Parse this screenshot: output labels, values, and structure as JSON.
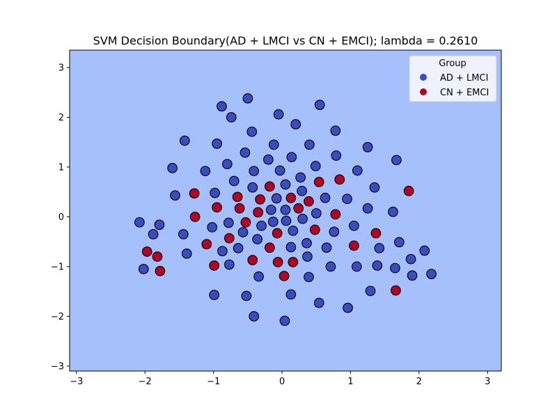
{
  "chart_data": {
    "type": "scatter",
    "title": "SVM Decision Boundary(AD + LMCI vs CN + EMCI); lambda = 0.2610",
    "xlabel": "",
    "ylabel": "",
    "xlim": [
      -3.1,
      3.2
    ],
    "ylim": [
      -3.1,
      3.35
    ],
    "xticks": [
      -3,
      -2,
      -1,
      0,
      1,
      2,
      3
    ],
    "yticks": [
      -3,
      -2,
      -1,
      0,
      1,
      2,
      3
    ],
    "grid": false,
    "background_color": "#a5c0fd",
    "legend": {
      "title": "Group",
      "placement": "top-right"
    },
    "series": [
      {
        "name": "AD + LMCI",
        "color": "#3b4cc0",
        "points": [
          [
            -0.5,
            2.38
          ],
          [
            0.55,
            2.25
          ],
          [
            -0.88,
            2.22
          ],
          [
            -0.05,
            2.06
          ],
          [
            -0.74,
            2.0
          ],
          [
            0.2,
            1.86
          ],
          [
            0.78,
            1.73
          ],
          [
            -0.44,
            1.71
          ],
          [
            -1.42,
            1.53
          ],
          [
            -0.95,
            1.47
          ],
          [
            -0.12,
            1.45
          ],
          [
            0.4,
            1.45
          ],
          [
            1.25,
            1.4
          ],
          [
            -0.54,
            1.29
          ],
          [
            0.79,
            1.23
          ],
          [
            0.14,
            1.2
          ],
          [
            -0.2,
            1.15
          ],
          [
            1.67,
            1.14
          ],
          [
            -0.8,
            1.06
          ],
          [
            0.49,
            1.02
          ],
          [
            -1.6,
            0.98
          ],
          [
            -0.41,
            0.92
          ],
          [
            -0.03,
            0.93
          ],
          [
            1.1,
            0.93
          ],
          [
            -1.12,
            0.92
          ],
          [
            0.27,
            0.79
          ],
          [
            -0.7,
            0.72
          ],
          [
            0.05,
            0.65
          ],
          [
            -0.43,
            0.59
          ],
          [
            1.35,
            0.59
          ],
          [
            0.29,
            0.52
          ],
          [
            -0.98,
            0.48
          ],
          [
            -1.56,
            0.43
          ],
          [
            0.63,
            0.38
          ],
          [
            -0.08,
            0.37
          ],
          [
            0.95,
            0.36
          ],
          [
            1.25,
            0.17
          ],
          [
            -0.16,
            0.14
          ],
          [
            0.05,
            0.14
          ],
          [
            1.62,
            0.1
          ],
          [
            0.5,
            0.07
          ],
          [
            0.06,
            -0.08
          ],
          [
            0.3,
            -0.04
          ],
          [
            -0.13,
            -0.1
          ],
          [
            -0.78,
            -0.12
          ],
          [
            -2.08,
            -0.11
          ],
          [
            -1.79,
            -0.16
          ],
          [
            -0.3,
            -0.18
          ],
          [
            1.05,
            -0.18
          ],
          [
            -1.02,
            -0.21
          ],
          [
            0.16,
            -0.28
          ],
          [
            0.76,
            -0.3
          ],
          [
            -0.57,
            -0.31
          ],
          [
            -1.44,
            -0.35
          ],
          [
            -1.88,
            -0.35
          ],
          [
            -0.36,
            -0.45
          ],
          [
            0.36,
            -0.53
          ],
          [
            1.71,
            -0.51
          ],
          [
            -0.64,
            -0.63
          ],
          [
            0.65,
            -0.62
          ],
          [
            0.13,
            -0.61
          ],
          [
            1.42,
            -0.63
          ],
          [
            -0.87,
            -0.69
          ],
          [
            2.08,
            -0.68
          ],
          [
            -1.39,
            -0.74
          ],
          [
            0.37,
            -0.8
          ],
          [
            1.88,
            -0.85
          ],
          [
            -0.77,
            -0.96
          ],
          [
            0.71,
            -1.0
          ],
          [
            1.09,
            -1.0
          ],
          [
            1.39,
            -0.98
          ],
          [
            -2.02,
            -1.05
          ],
          [
            1.65,
            -1.03
          ],
          [
            -0.34,
            -1.2
          ],
          [
            0.39,
            -1.21
          ],
          [
            1.9,
            -1.18
          ],
          [
            2.18,
            -1.15
          ],
          [
            1.29,
            -1.49
          ],
          [
            -0.99,
            -1.57
          ],
          [
            -0.52,
            -1.59
          ],
          [
            0.13,
            -1.56
          ],
          [
            0.54,
            -1.73
          ],
          [
            0.96,
            -1.83
          ],
          [
            -0.41,
            -2.0
          ],
          [
            0.04,
            -2.09
          ]
        ]
      },
      {
        "name": "CN + EMCI",
        "color": "#b40426",
        "points": [
          [
            0.84,
            0.75
          ],
          [
            1.85,
            0.52
          ],
          [
            0.54,
            0.7
          ],
          [
            -0.18,
            0.61
          ],
          [
            -1.28,
            0.47
          ],
          [
            -0.65,
            0.4
          ],
          [
            -0.32,
            0.35
          ],
          [
            0.13,
            0.38
          ],
          [
            0.39,
            0.31
          ],
          [
            -0.95,
            0.19
          ],
          [
            -0.62,
            0.17
          ],
          [
            0.24,
            0.17
          ],
          [
            -0.35,
            0.09
          ],
          [
            0.78,
            0.05
          ],
          [
            -1.27,
            0.0
          ],
          [
            -0.53,
            -0.11
          ],
          [
            0.48,
            -0.26
          ],
          [
            -0.07,
            -0.33
          ],
          [
            1.37,
            -0.33
          ],
          [
            -0.77,
            -0.43
          ],
          [
            -1.1,
            -0.55
          ],
          [
            -0.18,
            -0.62
          ],
          [
            1.05,
            -0.58
          ],
          [
            -1.97,
            -0.7
          ],
          [
            -1.82,
            -0.8
          ],
          [
            -0.43,
            -0.87
          ],
          [
            -0.06,
            -0.91
          ],
          [
            0.16,
            -0.91
          ],
          [
            -0.99,
            -0.98
          ],
          [
            -1.78,
            -1.09
          ],
          [
            0.03,
            -1.19
          ],
          [
            1.66,
            -1.48
          ]
        ]
      }
    ]
  }
}
